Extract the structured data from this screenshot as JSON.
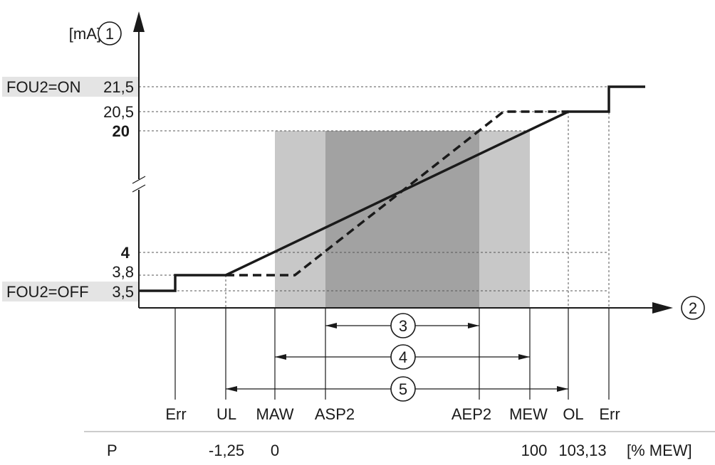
{
  "y_axis": {
    "unit": "[mA]",
    "marker": "1"
  },
  "x_axis": {
    "marker": "2"
  },
  "y_levels": [
    {
      "id": "21.5",
      "value": "21,5",
      "prefix": "FOU2=ON",
      "bold": false
    },
    {
      "id": "20.5",
      "value": "20,5",
      "prefix": "",
      "bold": false
    },
    {
      "id": "20",
      "value": "20",
      "prefix": "",
      "bold": true
    },
    {
      "id": "4",
      "value": "4",
      "prefix": "",
      "bold": true
    },
    {
      "id": "3.8",
      "value": "3,8",
      "prefix": "",
      "bold": false
    },
    {
      "id": "3.5",
      "value": "3,5",
      "prefix": "FOU2=OFF",
      "bold": false
    }
  ],
  "x_points": [
    {
      "id": "err-left",
      "label": "Err",
      "p": ""
    },
    {
      "id": "ul",
      "label": "UL",
      "p": "-1,25"
    },
    {
      "id": "maw",
      "label": "MAW",
      "p": "0"
    },
    {
      "id": "asp2",
      "label": "ASP2",
      "p": ""
    },
    {
      "id": "aep2",
      "label": "AEP2",
      "p": ""
    },
    {
      "id": "mew",
      "label": "MEW",
      "p": "100"
    },
    {
      "id": "ol",
      "label": "OL",
      "p": "103,13"
    },
    {
      "id": "err-right",
      "label": "Err",
      "p": ""
    }
  ],
  "p_row": {
    "label": "P",
    "unit": "[% MEW]"
  },
  "ranges": [
    {
      "id": "3",
      "marker": "3",
      "from": "asp2",
      "to": "aep2"
    },
    {
      "id": "4",
      "marker": "4",
      "from": "maw",
      "to": "mew"
    },
    {
      "id": "5",
      "marker": "5",
      "from": "ul",
      "to": "ol"
    }
  ],
  "colors": {
    "shade_light": "#c8c8c8",
    "shade_dark": "#a2a2a2",
    "label_bg": "#e4e4e4"
  }
}
